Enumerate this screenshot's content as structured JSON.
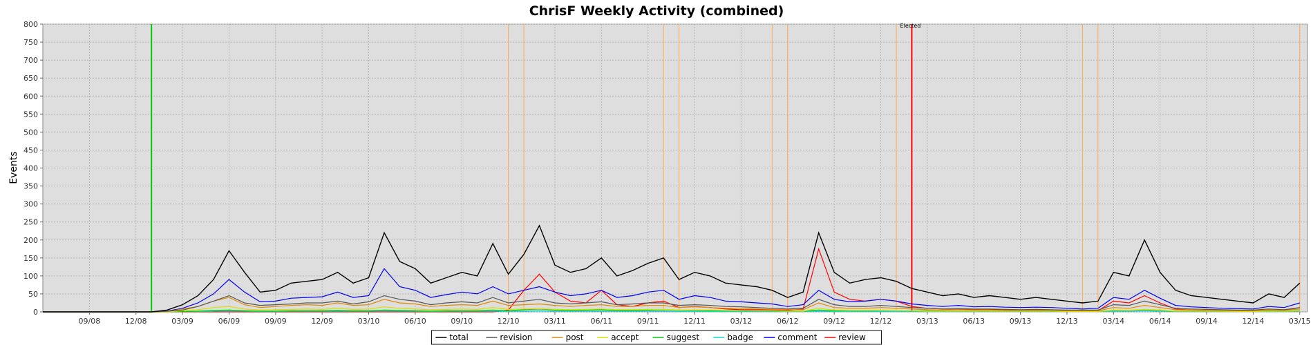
{
  "chart_data": {
    "type": "line",
    "title": "ChrisF Weekly Activity (combined)",
    "ylabel": "Events",
    "xlabel": "",
    "ylim": [
      0,
      800
    ],
    "yticks": [
      0,
      50,
      100,
      150,
      200,
      250,
      300,
      350,
      400,
      450,
      500,
      550,
      600,
      650,
      700,
      750,
      800
    ],
    "x_range_months": [
      "2008-06",
      "2015-03"
    ],
    "xticks": [
      "09/08",
      "12/08",
      "03/09",
      "06/09",
      "09/09",
      "12/09",
      "03/10",
      "06/10",
      "09/10",
      "12/10",
      "03/11",
      "06/11",
      "09/11",
      "12/11",
      "03/12",
      "06/12",
      "09/12",
      "12/12",
      "03/13",
      "06/13",
      "09/13",
      "12/13",
      "03/14",
      "06/14",
      "09/14",
      "12/14",
      "03/15"
    ],
    "grid": true,
    "legend_position": "bottom",
    "annotations": [
      {
        "text": "Elected",
        "date": "2013-02"
      }
    ],
    "events": [
      {
        "date": "2009-01",
        "color": "#00cc00"
      },
      {
        "date": "2010-12",
        "color": "#ffaa55"
      },
      {
        "date": "2011-01",
        "color": "#ffaa55"
      },
      {
        "date": "2011-10",
        "color": "#ffaa55"
      },
      {
        "date": "2011-11",
        "color": "#ffaa55"
      },
      {
        "date": "2012-05",
        "color": "#ffaa55"
      },
      {
        "date": "2012-06",
        "color": "#ffaa55"
      },
      {
        "date": "2013-01",
        "color": "#ffaa55"
      },
      {
        "date": "2013-02",
        "color": "#ff0000"
      },
      {
        "date": "2014-01",
        "color": "#ffaa55"
      },
      {
        "date": "2014-02",
        "color": "#ffaa55"
      },
      {
        "date": "2015-03",
        "color": "#ffaa55"
      }
    ],
    "x": [
      "2008-06",
      "2008-07",
      "2008-08",
      "2008-09",
      "2008-10",
      "2008-11",
      "2008-12",
      "2009-01",
      "2009-02",
      "2009-03",
      "2009-04",
      "2009-05",
      "2009-06",
      "2009-07",
      "2009-08",
      "2009-09",
      "2009-10",
      "2009-11",
      "2009-12",
      "2010-01",
      "2010-02",
      "2010-03",
      "2010-04",
      "2010-05",
      "2010-06",
      "2010-07",
      "2010-08",
      "2010-09",
      "2010-10",
      "2010-11",
      "2010-12",
      "2011-01",
      "2011-02",
      "2011-03",
      "2011-04",
      "2011-05",
      "2011-06",
      "2011-07",
      "2011-08",
      "2011-09",
      "2011-10",
      "2011-11",
      "2011-12",
      "2012-01",
      "2012-02",
      "2012-03",
      "2012-04",
      "2012-05",
      "2012-06",
      "2012-07",
      "2012-08",
      "2012-09",
      "2012-10",
      "2012-11",
      "2012-12",
      "2013-01",
      "2013-02",
      "2013-03",
      "2013-04",
      "2013-05",
      "2013-06",
      "2013-07",
      "2013-08",
      "2013-09",
      "2013-10",
      "2013-11",
      "2013-12",
      "2014-01",
      "2014-02",
      "2014-03",
      "2014-04",
      "2014-05",
      "2014-06",
      "2014-07",
      "2014-08",
      "2014-09",
      "2014-10",
      "2014-11",
      "2014-12",
      "2015-01",
      "2015-02",
      "2015-03"
    ],
    "series": [
      {
        "name": "total",
        "color": "#000000",
        "values": [
          0,
          0,
          0,
          0,
          0,
          0,
          0,
          0,
          5,
          20,
          45,
          90,
          170,
          110,
          55,
          60,
          80,
          85,
          90,
          110,
          80,
          95,
          220,
          140,
          120,
          80,
          95,
          110,
          100,
          190,
          105,
          160,
          240,
          130,
          110,
          120,
          150,
          100,
          115,
          135,
          150,
          90,
          110,
          100,
          80,
          75,
          70,
          60,
          40,
          55,
          220,
          110,
          80,
          90,
          95,
          85,
          65,
          55,
          45,
          50,
          40,
          45,
          40,
          35,
          40,
          35,
          30,
          25,
          30,
          110,
          100,
          200,
          110,
          60,
          45,
          40,
          35,
          30,
          25,
          50,
          40,
          80
        ]
      },
      {
        "name": "revision",
        "color": "#555555",
        "values": [
          0,
          0,
          0,
          0,
          0,
          0,
          0,
          0,
          2,
          5,
          15,
          30,
          45,
          25,
          18,
          20,
          22,
          25,
          25,
          30,
          22,
          28,
          45,
          35,
          30,
          20,
          25,
          28,
          25,
          40,
          25,
          30,
          35,
          25,
          22,
          25,
          28,
          20,
          22,
          25,
          25,
          18,
          20,
          18,
          15,
          14,
          12,
          10,
          8,
          10,
          35,
          20,
          15,
          15,
          18,
          15,
          12,
          10,
          8,
          9,
          8,
          8,
          7,
          6,
          7,
          6,
          5,
          5,
          5,
          20,
          18,
          30,
          20,
          10,
          8,
          7,
          6,
          5,
          5,
          8,
          6,
          12
        ]
      },
      {
        "name": "post",
        "color": "#e08a00",
        "values": [
          0,
          0,
          0,
          0,
          0,
          0,
          0,
          0,
          1,
          8,
          15,
          30,
          40,
          20,
          12,
          15,
          18,
          20,
          18,
          25,
          18,
          20,
          35,
          25,
          22,
          15,
          18,
          20,
          18,
          30,
          18,
          20,
          22,
          18,
          15,
          18,
          20,
          15,
          15,
          18,
          18,
          12,
          14,
          12,
          10,
          10,
          8,
          7,
          6,
          6,
          25,
          12,
          10,
          10,
          12,
          10,
          8,
          6,
          5,
          6,
          5,
          5,
          4,
          4,
          4,
          4,
          3,
          3,
          3,
          12,
          10,
          18,
          12,
          6,
          5,
          4,
          4,
          3,
          3,
          5,
          4,
          8
        ]
      },
      {
        "name": "accept",
        "color": "#dddd00",
        "values": [
          0,
          0,
          0,
          0,
          0,
          0,
          0,
          0,
          0,
          3,
          6,
          12,
          15,
          8,
          5,
          6,
          7,
          8,
          7,
          10,
          7,
          8,
          14,
          10,
          8,
          6,
          7,
          8,
          7,
          12,
          7,
          8,
          9,
          7,
          6,
          7,
          8,
          6,
          6,
          7,
          7,
          5,
          5,
          5,
          4,
          4,
          3,
          3,
          2,
          2,
          10,
          5,
          4,
          4,
          5,
          4,
          3,
          2,
          2,
          2,
          2,
          2,
          2,
          2,
          2,
          2,
          1,
          1,
          1,
          5,
          4,
          7,
          5,
          2,
          2,
          2,
          2,
          1,
          1,
          2,
          2,
          3
        ]
      },
      {
        "name": "suggest",
        "color": "#00cc00",
        "values": [
          0,
          0,
          0,
          0,
          0,
          0,
          0,
          0,
          0,
          1,
          2,
          4,
          5,
          3,
          2,
          2,
          3,
          3,
          3,
          4,
          3,
          3,
          5,
          4,
          3,
          2,
          3,
          3,
          3,
          5,
          3,
          6,
          8,
          5,
          4,
          5,
          6,
          4,
          4,
          5,
          6,
          4,
          4,
          3,
          3,
          3,
          3,
          3,
          2,
          2,
          5,
          3,
          3,
          3,
          4,
          4,
          3,
          3,
          2,
          2,
          2,
          2,
          2,
          2,
          2,
          2,
          2,
          2,
          2,
          4,
          4,
          6,
          4,
          2,
          2,
          2,
          2,
          2,
          2,
          3,
          2,
          4
        ]
      },
      {
        "name": "badge",
        "color": "#00dddd",
        "values": [
          0,
          0,
          0,
          0,
          0,
          0,
          0,
          0,
          0,
          1,
          1,
          2,
          3,
          2,
          1,
          1,
          2,
          2,
          2,
          2,
          2,
          2,
          3,
          2,
          2,
          1,
          2,
          2,
          2,
          2,
          2,
          2,
          3,
          2,
          2,
          2,
          2,
          2,
          2,
          2,
          2,
          1,
          2,
          1,
          1,
          1,
          1,
          1,
          1,
          1,
          2,
          1,
          1,
          1,
          1,
          1,
          1,
          1,
          1,
          1,
          1,
          1,
          1,
          1,
          1,
          1,
          1,
          1,
          1,
          2,
          2,
          3,
          2,
          1,
          1,
          1,
          1,
          1,
          1,
          1,
          1,
          2
        ]
      },
      {
        "name": "comment",
        "color": "#0000ee",
        "values": [
          0,
          0,
          0,
          0,
          0,
          0,
          0,
          0,
          2,
          10,
          25,
          50,
          90,
          55,
          28,
          30,
          38,
          40,
          42,
          55,
          40,
          45,
          120,
          70,
          60,
          40,
          48,
          55,
          50,
          70,
          50,
          60,
          70,
          55,
          45,
          50,
          60,
          40,
          45,
          55,
          60,
          35,
          45,
          40,
          30,
          28,
          25,
          22,
          15,
          20,
          60,
          35,
          28,
          30,
          35,
          30,
          22,
          18,
          15,
          18,
          14,
          15,
          13,
          12,
          13,
          12,
          10,
          8,
          10,
          40,
          35,
          60,
          38,
          18,
          14,
          12,
          10,
          9,
          8,
          15,
          12,
          25
        ]
      },
      {
        "name": "review",
        "color": "#ff0000",
        "values": [
          0,
          0,
          0,
          0,
          0,
          0,
          0,
          0,
          0,
          0,
          0,
          0,
          0,
          0,
          0,
          0,
          0,
          0,
          0,
          0,
          0,
          0,
          0,
          0,
          0,
          0,
          0,
          0,
          0,
          0,
          5,
          60,
          105,
          55,
          30,
          25,
          60,
          20,
          15,
          25,
          30,
          12,
          15,
          12,
          8,
          6,
          6,
          5,
          4,
          8,
          175,
          55,
          35,
          30,
          35,
          30,
          15,
          10,
          8,
          8,
          6,
          6,
          5,
          4,
          5,
          4,
          4,
          3,
          3,
          30,
          25,
          45,
          25,
          8,
          5,
          4,
          4,
          3,
          3,
          5,
          4,
          12
        ]
      }
    ]
  }
}
